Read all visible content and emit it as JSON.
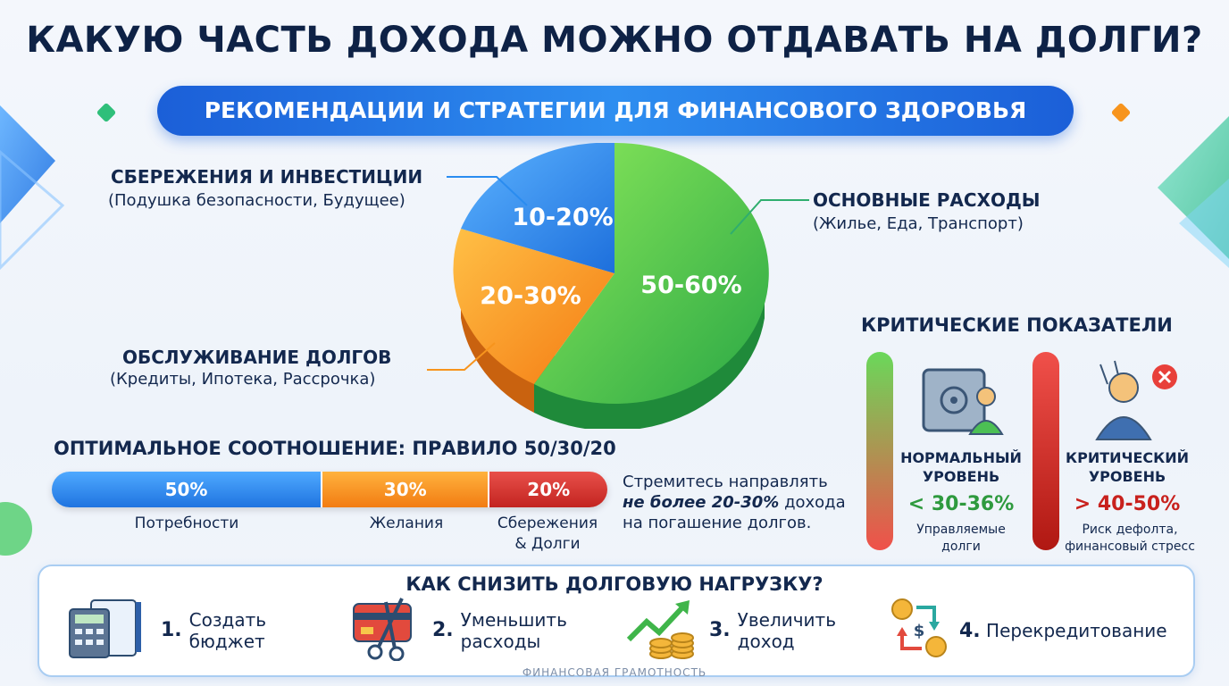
{
  "title": "КАКУЮ ЧАСТЬ ДОХОДА МОЖНО ОТДАВАТЬ НА ДОЛГИ?",
  "subtitle": "РЕКОМЕНДАЦИИ И СТРАТЕГИИ ДЛЯ ФИНАНСОВОГО ЗДОРОВЬЯ",
  "pie": {
    "slices": [
      {
        "name": "ОСНОВНЫЕ РАСХОДЫ",
        "sub": "(Жилье, Еда, Транспорт)",
        "pct": "50-60%",
        "color": "#3fbf4a"
      },
      {
        "name": "ОБСЛУЖИВАНИЕ ДОЛГОВ",
        "sub": "(Кредиты, Ипотека, Рассрочка)",
        "pct": "20-30%",
        "color": "#f7941d"
      },
      {
        "name": "СБЕРЕЖЕНИЯ И ИНВЕСТИЦИИ",
        "sub": "(Подушка безопасности, Будущее)",
        "pct": "10-20%",
        "color": "#2a8cf0"
      }
    ]
  },
  "rule": {
    "title": "ОПТИМАЛЬНОЕ СООТНОШЕНИЕ: ПРАВИЛО 50/30/20",
    "segments": [
      {
        "value": "50%",
        "label": "Потребности",
        "color": "#2a8cf0"
      },
      {
        "value": "30%",
        "label": "Желания",
        "color": "#f7941d"
      },
      {
        "value": "20%",
        "label": "Сбережения\n& Долги",
        "label1": "Сбережения",
        "label2": "& Долги",
        "color": "#d9302c"
      }
    ],
    "note1": "Стремитесь направлять",
    "note_em": "не более 20-30%",
    "note2": "дохода",
    "note3": "на погашение долгов."
  },
  "critical": {
    "title": "КРИТИЧЕСКИЕ ПОКАЗАТЕЛИ",
    "normal": {
      "head1": "НОРМАЛЬНЫЙ",
      "head2": "УРОВЕНЬ",
      "value": "< 30-36%",
      "desc1": "Управляемые",
      "desc2": "долги",
      "color": "#2e9a3e"
    },
    "critical": {
      "head1": "КРИТИЧЕСКИЙ",
      "head2": "УРОВЕНЬ",
      "value": "> 40-50%",
      "desc1": "Риск дефолта,",
      "desc2": "финансовый стресс",
      "color": "#c8211d"
    }
  },
  "reduce": {
    "title": "КАК СНИЗИТЬ ДОЛГОВУЮ НАГРУЗКУ?",
    "tips": [
      {
        "num": "1.",
        "line1": "Создать",
        "line2": "бюджет",
        "icon": "budget-calculator-icon"
      },
      {
        "num": "2.",
        "line1": "Уменьшить",
        "line2": "расходы",
        "icon": "card-scissors-icon"
      },
      {
        "num": "3.",
        "line1": "Увеличить",
        "line2": "доход",
        "icon": "growth-coins-icon"
      },
      {
        "num": "4.",
        "line1": "Перекредитование",
        "line2": "",
        "icon": "refinance-exchange-icon"
      }
    ]
  },
  "footer": "ФИНАНСОВАЯ ГРАМОТНОСТЬ"
}
